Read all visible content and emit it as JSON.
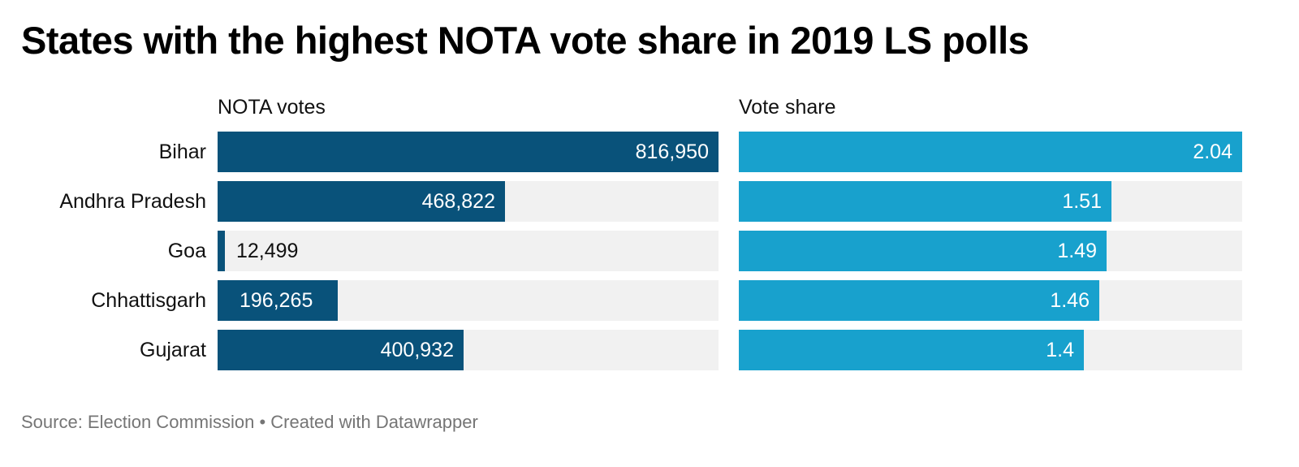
{
  "chart_data": {
    "type": "bar",
    "title": "States with the highest NOTA vote share in 2019 LS polls",
    "categories": [
      "Bihar",
      "Andhra Pradesh",
      "Goa",
      "Chhattisgarh",
      "Gujarat"
    ],
    "series": [
      {
        "name": "NOTA votes",
        "values": [
          816950,
          468822,
          12499,
          196265,
          400932
        ],
        "labels": [
          "816,950",
          "468,822",
          "12,499",
          "196,265",
          "400,932"
        ],
        "color": "#09527a",
        "max": 816950
      },
      {
        "name": "Vote share",
        "values": [
          2.04,
          1.51,
          1.49,
          1.46,
          1.4
        ],
        "labels": [
          "2.04",
          "1.51",
          "1.49",
          "1.46",
          "1.4"
        ],
        "color": "#18a1cd",
        "max": 2.04
      }
    ],
    "xlabel": "",
    "ylabel": "",
    "source": "Source: Election Commission • Created with Datawrapper"
  },
  "title": "States with the highest NOTA vote share in 2019 LS polls",
  "columns": {
    "left": "NOTA votes",
    "right": "Vote share"
  },
  "footer": "Source: Election Commission • Created with Datawrapper",
  "colors": {
    "votes": "#09527a",
    "share": "#18a1cd",
    "track": "#f1f1f1"
  }
}
